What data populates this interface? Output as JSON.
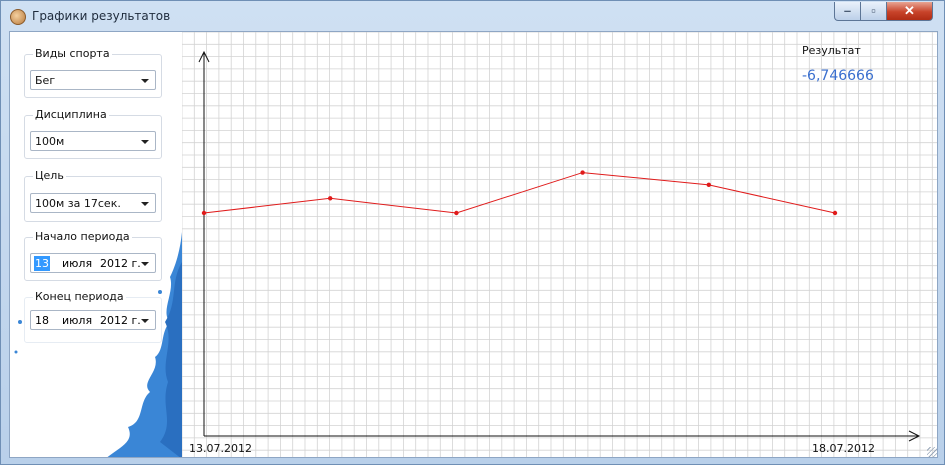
{
  "window": {
    "title": "Графики результатов",
    "icon": "app-emblem-icon"
  },
  "controls": {
    "sport": {
      "label": "Виды спорта",
      "value": "Бег"
    },
    "discipline": {
      "label": "Дисциплина",
      "value": "100м"
    },
    "goal": {
      "label": "Цель",
      "value": "100м за 17сек."
    },
    "period_start": {
      "label": "Начало периода",
      "day": "13",
      "month": "июля",
      "year": "2012 г."
    },
    "period_end": {
      "label": "Конец периода",
      "day": "18",
      "month": "июля",
      "year": "2012 г."
    }
  },
  "result": {
    "label": "Результат",
    "value": "-6,746666"
  },
  "chart_data": {
    "type": "line",
    "x_start_label": "13.07.2012",
    "x_end_label": "18.07.2012",
    "points": [
      {
        "x": "13.07.2012",
        "y": 0.0
      },
      {
        "x": "14.07.2012",
        "y": 0.6
      },
      {
        "x": "15.07.2012",
        "y": 0.0
      },
      {
        "x": "16.07.2012",
        "y": 1.65
      },
      {
        "x": "17.07.2012",
        "y": 1.15
      },
      {
        "x": "18.07.2012",
        "y": 0.0
      }
    ],
    "grid": true,
    "line_color": "#e01b1b",
    "grid_color": "#d3d3d3"
  }
}
